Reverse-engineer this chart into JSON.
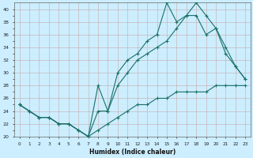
{
  "xlabel": "Humidex (Indice chaleur)",
  "bg_color": "#cceeff",
  "grid_major_color": "#bbcccc",
  "grid_minor_color": "#ddeeee",
  "line_color": "#1a7068",
  "xlim": [
    -0.5,
    23.5
  ],
  "ylim": [
    20,
    41
  ],
  "xticks": [
    0,
    1,
    2,
    3,
    4,
    5,
    6,
    7,
    8,
    9,
    10,
    11,
    12,
    13,
    14,
    15,
    16,
    17,
    18,
    19,
    20,
    21,
    22,
    23
  ],
  "yticks": [
    20,
    22,
    24,
    26,
    28,
    30,
    32,
    34,
    36,
    38,
    40
  ],
  "line1_x": [
    0,
    1,
    2,
    3,
    4,
    5,
    6,
    7,
    8,
    9,
    10,
    11,
    12,
    13,
    14,
    15,
    16,
    17,
    18,
    19,
    20,
    21,
    22,
    23
  ],
  "line1_y": [
    25,
    24,
    23,
    23,
    22,
    22,
    21,
    20,
    21,
    22,
    23,
    24,
    25,
    25,
    26,
    26,
    27,
    27,
    27,
    27,
    28,
    28,
    28,
    28
  ],
  "line2_x": [
    0,
    1,
    2,
    3,
    4,
    5,
    6,
    7,
    8,
    9,
    10,
    11,
    12,
    13,
    14,
    15,
    16,
    17,
    18,
    19,
    20,
    21,
    22,
    23
  ],
  "line2_y": [
    25,
    24,
    23,
    23,
    22,
    22,
    21,
    20,
    24,
    24,
    28,
    30,
    32,
    33,
    34,
    35,
    37,
    39,
    39,
    36,
    37,
    33,
    31,
    29
  ],
  "line3_x": [
    0,
    1,
    2,
    3,
    4,
    5,
    6,
    7,
    8,
    9,
    10,
    11,
    12,
    13,
    14,
    15,
    16,
    17,
    18,
    19,
    20,
    21,
    22,
    23
  ],
  "line3_y": [
    25,
    24,
    23,
    23,
    22,
    22,
    21,
    20,
    28,
    24,
    30,
    32,
    33,
    35,
    36,
    41,
    38,
    39,
    41,
    39,
    37,
    34,
    31,
    29
  ]
}
